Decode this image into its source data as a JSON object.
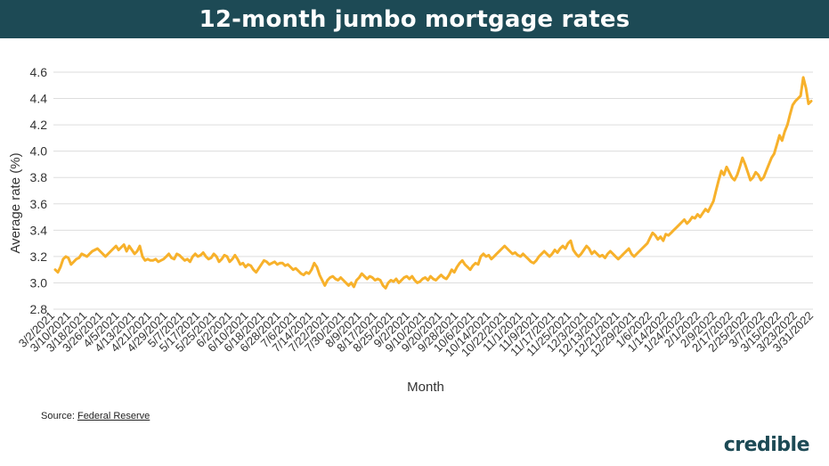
{
  "header": {
    "title": "12-month jumbo mortgage rates"
  },
  "source": {
    "label": "Source: ",
    "link_text": "Federal Reserve"
  },
  "logo": {
    "text": "credible"
  },
  "colors": {
    "line": "#f7b12b",
    "header_bg": "#1d4a55",
    "grid": "#dddddd"
  },
  "chart_data": {
    "type": "line",
    "title": "12-month jumbo mortgage rates",
    "xlabel": "Month",
    "ylabel": "Average rate (%)",
    "ylim": [
      2.8,
      4.6
    ],
    "yticks": [
      2.8,
      3.0,
      3.2,
      3.4,
      3.6,
      3.8,
      4.0,
      4.2,
      4.4,
      4.6
    ],
    "grid": true,
    "xticklabels": [
      "3/2/2021",
      "3/10/2021",
      "3/18/2021",
      "3/26/2021",
      "4/5/2021",
      "4/13/2021",
      "4/21/2021",
      "4/29/2021",
      "5/7/2021",
      "5/17/2021",
      "5/25/2021",
      "6/2/2021",
      "6/10/2021",
      "6/18/2021",
      "6/28/2021",
      "7/6/2021",
      "7/14/2021",
      "7/22/2021",
      "7/30/2021",
      "8/9/2021",
      "8/17/2021",
      "8/25/2021",
      "9/2/2021",
      "9/10/2021",
      "9/20/2021",
      "9/28/2021",
      "10/6/2021",
      "10/14/2021",
      "10/22/2021",
      "11/1/2021",
      "11/9/2021",
      "11/17/2021",
      "11/25/2021",
      "12/3/2021",
      "12/13/2021",
      "12/21/2021",
      "12/29/2021",
      "1/6/2022",
      "1/14/2022",
      "1/24/2022",
      "2/1/2022",
      "2/9/2022",
      "2/17/2022",
      "2/25/2022",
      "3/7/2022",
      "3/15/2022",
      "3/23/2022",
      "3/31/2022"
    ],
    "series": [
      {
        "values": [
          3.1,
          3.08,
          3.12,
          3.18,
          3.2,
          3.19,
          3.14,
          3.16,
          3.18,
          3.19,
          3.22,
          3.21,
          3.2,
          3.22,
          3.24,
          3.25,
          3.26,
          3.24,
          3.22,
          3.2,
          3.22,
          3.24,
          3.26,
          3.28,
          3.25,
          3.27,
          3.29,
          3.24,
          3.28,
          3.25,
          3.22,
          3.24,
          3.28,
          3.2,
          3.17,
          3.18,
          3.17,
          3.17,
          3.18,
          3.16,
          3.17,
          3.18,
          3.2,
          3.22,
          3.19,
          3.18,
          3.22,
          3.21,
          3.19,
          3.17,
          3.18,
          3.16,
          3.2,
          3.22,
          3.2,
          3.21,
          3.23,
          3.2,
          3.18,
          3.19,
          3.22,
          3.2,
          3.16,
          3.18,
          3.21,
          3.2,
          3.16,
          3.18,
          3.21,
          3.18,
          3.14,
          3.15,
          3.12,
          3.14,
          3.13,
          3.1,
          3.08,
          3.11,
          3.14,
          3.17,
          3.16,
          3.14,
          3.15,
          3.16,
          3.14,
          3.15,
          3.15,
          3.13,
          3.14,
          3.12,
          3.1,
          3.11,
          3.09,
          3.07,
          3.06,
          3.08,
          3.07,
          3.1,
          3.15,
          3.12,
          3.06,
          3.02,
          2.98,
          3.02,
          3.04,
          3.05,
          3.03,
          3.02,
          3.04,
          3.02,
          3.0,
          2.98,
          3.0,
          2.97,
          3.02,
          3.04,
          3.07,
          3.05,
          3.03,
          3.05,
          3.04,
          3.02,
          3.03,
          3.02,
          2.98,
          2.96,
          3.0,
          3.02,
          3.01,
          3.03,
          3.0,
          3.02,
          3.04,
          3.05,
          3.03,
          3.05,
          3.02,
          3.0,
          3.01,
          3.03,
          3.04,
          3.02,
          3.05,
          3.03,
          3.02,
          3.04,
          3.06,
          3.04,
          3.03,
          3.06,
          3.1,
          3.08,
          3.12,
          3.15,
          3.17,
          3.14,
          3.12,
          3.1,
          3.13,
          3.15,
          3.14,
          3.2,
          3.22,
          3.2,
          3.21,
          3.18,
          3.2,
          3.22,
          3.24,
          3.26,
          3.28,
          3.26,
          3.24,
          3.22,
          3.23,
          3.21,
          3.2,
          3.22,
          3.2,
          3.18,
          3.16,
          3.15,
          3.17,
          3.2,
          3.22,
          3.24,
          3.22,
          3.2,
          3.22,
          3.25,
          3.23,
          3.26,
          3.28,
          3.26,
          3.3,
          3.32,
          3.25,
          3.22,
          3.2,
          3.22,
          3.25,
          3.28,
          3.26,
          3.22,
          3.24,
          3.22,
          3.2,
          3.21,
          3.19,
          3.22,
          3.24,
          3.22,
          3.2,
          3.18,
          3.2,
          3.22,
          3.24,
          3.26,
          3.22,
          3.2,
          3.22,
          3.24,
          3.26,
          3.28,
          3.3,
          3.34,
          3.38,
          3.36,
          3.33,
          3.35,
          3.32,
          3.37,
          3.36,
          3.38,
          3.4,
          3.42,
          3.44,
          3.46,
          3.48,
          3.45,
          3.47,
          3.5,
          3.49,
          3.52,
          3.5,
          3.53,
          3.56,
          3.54,
          3.58,
          3.62,
          3.7,
          3.78,
          3.85,
          3.82,
          3.88,
          3.84,
          3.8,
          3.78,
          3.82,
          3.88,
          3.95,
          3.9,
          3.84,
          3.78,
          3.8,
          3.84,
          3.82,
          3.78,
          3.8,
          3.85,
          3.9,
          3.95,
          3.98,
          4.05,
          4.12,
          4.08,
          4.15,
          4.2,
          4.28,
          4.35,
          4.38,
          4.4,
          4.42,
          4.56,
          4.48,
          4.36,
          4.38
        ]
      }
    ]
  }
}
